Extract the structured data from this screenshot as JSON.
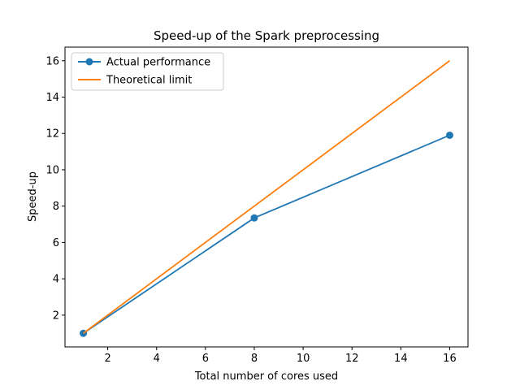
{
  "chart_data": {
    "type": "line",
    "title": "Speed-up of the Spark preprocessing",
    "xlabel": "Total number of cores used",
    "ylabel": "Speed-up",
    "xlim": [
      0.25,
      16.75
    ],
    "ylim": [
      0.25,
      16.75
    ],
    "xticks": [
      2,
      4,
      6,
      8,
      10,
      12,
      14,
      16
    ],
    "yticks": [
      2,
      4,
      6,
      8,
      10,
      12,
      14,
      16
    ],
    "grid": false,
    "legend_position": "upper-left",
    "series": [
      {
        "name": "Actual performance",
        "color": "#1f77b4",
        "marker": "circle",
        "x": [
          1,
          8,
          16
        ],
        "y": [
          1.0,
          7.35,
          11.9
        ]
      },
      {
        "name": "Theoretical limit",
        "color": "#ff7f0e",
        "marker": "none",
        "x": [
          1,
          16
        ],
        "y": [
          1,
          16
        ]
      }
    ]
  }
}
